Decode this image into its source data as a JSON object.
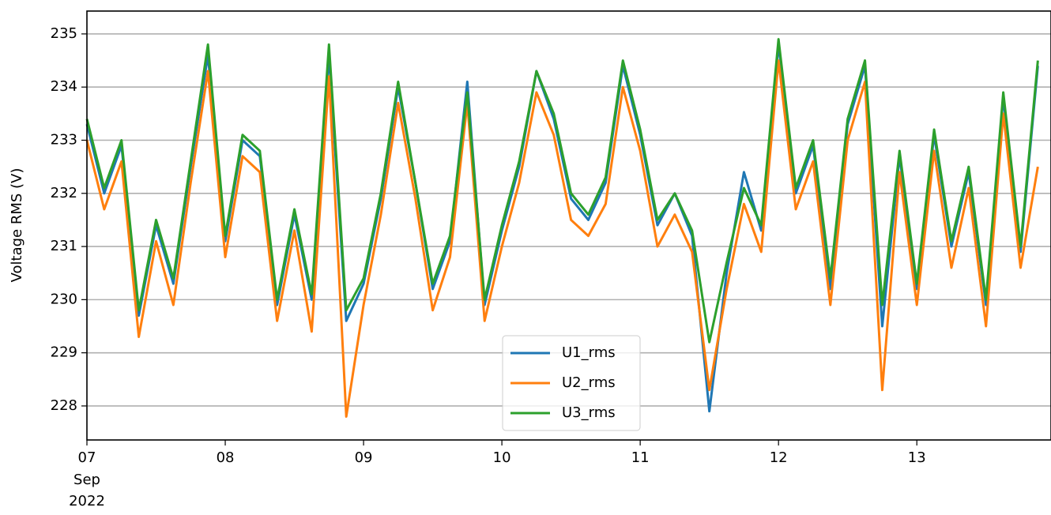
{
  "chart_data": {
    "type": "line",
    "y_label": "Voltage RMS (V)",
    "x_month_label": "Sep",
    "x_year_label": "2022",
    "x": [
      7.0,
      7.125,
      7.25,
      7.375,
      7.5,
      7.625,
      7.75,
      7.875,
      8.0,
      8.125,
      8.25,
      8.375,
      8.5,
      8.625,
      8.75,
      8.875,
      9.0,
      9.125,
      9.25,
      9.375,
      9.5,
      9.625,
      9.75,
      9.875,
      10.0,
      10.125,
      10.25,
      10.375,
      10.5,
      10.625,
      10.75,
      10.875,
      11.0,
      11.125,
      11.25,
      11.375,
      11.5,
      11.625,
      11.75,
      11.875,
      12.0,
      12.125,
      12.25,
      12.375,
      12.5,
      12.625,
      12.75,
      12.875,
      13.0,
      13.125,
      13.25,
      13.375,
      13.5,
      13.625,
      13.75,
      13.875
    ],
    "series": [
      {
        "name": "U1_rms",
        "color": "#1f77b4",
        "values": [
          233.3,
          232.0,
          232.9,
          229.7,
          231.4,
          230.3,
          232.5,
          234.6,
          231.1,
          233.0,
          232.7,
          229.9,
          231.6,
          230.0,
          234.6,
          229.6,
          230.3,
          231.9,
          234.0,
          232.2,
          230.2,
          231.1,
          234.1,
          229.9,
          231.3,
          232.5,
          234.3,
          233.4,
          231.9,
          231.5,
          232.2,
          234.4,
          233.1,
          231.4,
          232.0,
          231.2,
          227.9,
          230.5,
          232.4,
          231.3,
          234.8,
          232.0,
          232.9,
          230.2,
          233.3,
          234.4,
          229.5,
          232.7,
          230.2,
          233.1,
          231.0,
          232.4,
          229.9,
          233.8,
          230.9,
          234.4
        ]
      },
      {
        "name": "U2_rms",
        "color": "#ff7f0e",
        "values": [
          233.0,
          231.7,
          232.6,
          229.3,
          231.1,
          229.9,
          232.2,
          234.3,
          230.8,
          232.7,
          232.4,
          229.6,
          231.3,
          229.4,
          234.2,
          227.8,
          229.9,
          231.6,
          233.7,
          231.9,
          229.8,
          230.8,
          233.7,
          229.6,
          231.0,
          232.2,
          233.9,
          233.1,
          231.5,
          231.2,
          231.8,
          234.0,
          232.8,
          231.0,
          231.6,
          230.9,
          228.3,
          230.2,
          231.8,
          230.9,
          234.5,
          231.7,
          232.6,
          229.9,
          233.0,
          234.1,
          228.3,
          232.4,
          229.9,
          232.8,
          230.6,
          232.1,
          229.5,
          233.5,
          230.6,
          232.5
        ]
      },
      {
        "name": "U3_rms",
        "color": "#2ca02c",
        "values": [
          233.4,
          232.1,
          233.0,
          229.8,
          231.5,
          230.4,
          232.6,
          234.8,
          231.2,
          233.1,
          232.8,
          230.0,
          231.7,
          230.1,
          234.8,
          229.8,
          230.4,
          232.0,
          234.1,
          232.2,
          230.3,
          231.2,
          233.9,
          230.0,
          231.4,
          232.6,
          234.3,
          233.5,
          232.0,
          231.6,
          232.3,
          234.5,
          233.2,
          231.5,
          232.0,
          231.3,
          229.2,
          230.7,
          232.1,
          231.4,
          234.9,
          232.1,
          233.0,
          230.4,
          233.4,
          234.5,
          229.9,
          232.8,
          230.3,
          233.2,
          231.1,
          232.5,
          230.0,
          233.9,
          231.0,
          234.5
        ]
      }
    ],
    "xlim": [
      7,
      13.97
    ],
    "xticks": [
      {
        "value": 7,
        "label": "07"
      },
      {
        "value": 8,
        "label": "08"
      },
      {
        "value": 9,
        "label": "09"
      },
      {
        "value": 10,
        "label": "10"
      },
      {
        "value": 11,
        "label": "11"
      },
      {
        "value": 12,
        "label": "12"
      },
      {
        "value": 13,
        "label": "13"
      }
    ],
    "ylim": [
      227.36,
      235.43
    ],
    "yticks": [
      228,
      229,
      230,
      231,
      232,
      233,
      234,
      235
    ],
    "grid": "y",
    "legend": "lower center"
  }
}
